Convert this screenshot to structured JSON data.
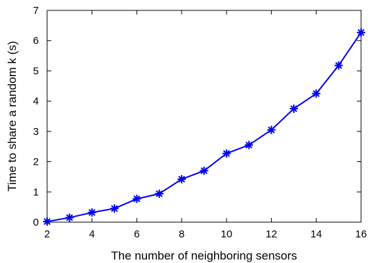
{
  "chart_data": {
    "type": "line",
    "xlabel": "The number of neighboring sensors",
    "ylabel": "Time to share a random k (s)",
    "xlim": [
      2,
      16
    ],
    "ylim": [
      0,
      7
    ],
    "xticks": [
      2,
      4,
      6,
      8,
      10,
      12,
      14,
      16
    ],
    "yticks": [
      0,
      1,
      2,
      3,
      4,
      5,
      6,
      7
    ],
    "grid": false,
    "series": [
      {
        "color": "#0000ee",
        "marker": "asterisk",
        "x": [
          2,
          3,
          4,
          5,
          6,
          7,
          8,
          9,
          10,
          11,
          12,
          13,
          14,
          15,
          16
        ],
        "y": [
          0.02,
          0.15,
          0.32,
          0.45,
          0.77,
          0.94,
          1.42,
          1.7,
          2.27,
          2.55,
          3.05,
          3.75,
          4.25,
          5.18,
          6.27
        ]
      }
    ]
  }
}
